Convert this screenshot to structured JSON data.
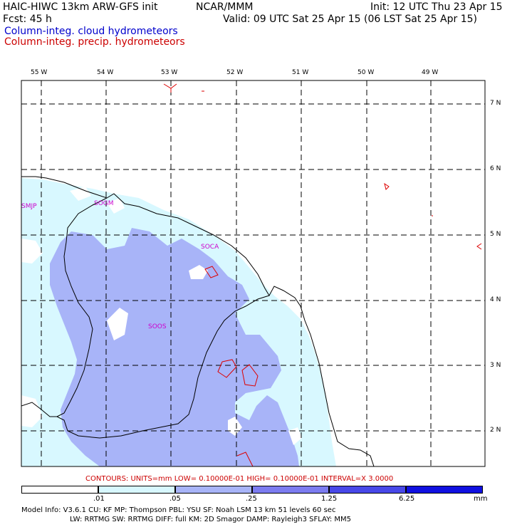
{
  "header": {
    "title_left": "HAIC-HIWC 13km ARW-GFS init",
    "title_center": "NCAR/MMM",
    "init": "Init: 12 UTC Thu 23 Apr 15",
    "fcst": "Fcst:   45 h",
    "valid": "Valid: 09 UTC Sat 25 Apr 15 (06 LST Sat 25 Apr 15)",
    "field_cloud": "Column-integ. cloud hydrometeors",
    "field_precip": "Column-integ. precip. hydrometeors"
  },
  "colors": {
    "cloud_text": "#0000cc",
    "precip_text": "#cc0000",
    "station_text": "#cc00cc",
    "shade_1": "#d8f8ff",
    "shade_2": "#a8b4f8",
    "shade_3": "#7c7cf0",
    "shade_4": "#5050e8",
    "shade_5": "#3030e0",
    "shade_6": "#1010e0"
  },
  "longitude_labels": [
    "55 W",
    "54 W",
    "53 W",
    "52 W",
    "51 W",
    "50 W",
    "49 W"
  ],
  "latitude_labels": [
    "7 N",
    "6 N",
    "5 N",
    "4 N",
    "3 N",
    "2 N"
  ],
  "stations": [
    "SMJP",
    "SOGM",
    "SOCA",
    "SOOS"
  ],
  "contours_info": "CONTOURS:  UNITS=mm  LOW= 0.10000E-01  HIGH= 0.10000E-01  INTERVAL=X  3.0000",
  "colorbar": {
    "ticks": [
      ".01",
      ".05",
      ".25",
      "1.25",
      "6.25"
    ],
    "units": "mm"
  },
  "model_info": {
    "line1": "Model Info: V3.6.1    CU: KF       MP: Thompson     PBL: YSU      SF: Noah LSM     13 km    51 levels    60 sec",
    "line2": "LW: RRTMG     SW: RRTMG   DIFF: full    KM: 2D Smagor  DAMP: Rayleigh3   SFLAY: MM5"
  }
}
